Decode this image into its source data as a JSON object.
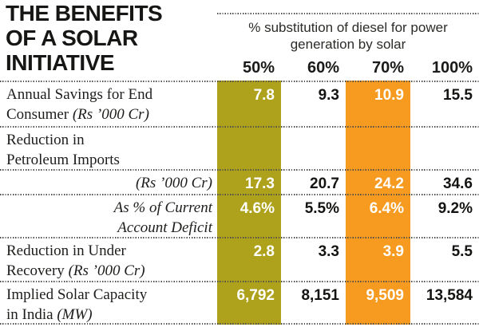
{
  "title": {
    "line1": "THE BENEFITS",
    "line2": "OF A SOLAR",
    "line3": "INITIATIVE"
  },
  "header": {
    "subtitle": "% substitution of diesel for power generation by solar",
    "col1": "50%",
    "col2": "60%",
    "col3": "70%",
    "col4": "100%"
  },
  "colors": {
    "olive_band": "#aea11b",
    "orange_band": "#f79b20"
  },
  "rows": [
    {
      "label_l1": "Annual Savings for End",
      "label_l2": "Consumer",
      "label_note": "(Rs ’000 Cr)",
      "v1": "7.8",
      "v2": "9.3",
      "v3": "10.9",
      "v4": "15.5"
    },
    {
      "label_l1": "Reduction in",
      "label_l2": "Petroleum Imports",
      "v1": "",
      "v2": "",
      "v3": "",
      "v4": ""
    },
    {
      "label_note": "(Rs ’000 Cr)",
      "v1": "17.3",
      "v2": "20.7",
      "v3": "24.2",
      "v4": "34.6"
    },
    {
      "label_l1": "As % of Current",
      "label_l2": "Account Deficit",
      "v1": "4.6%",
      "v2": "5.5%",
      "v3": "6.4%",
      "v4": "9.2%"
    },
    {
      "label_l1": "Reduction in Under",
      "label_l2": "Recovery",
      "label_note": "(Rs ’000 Cr)",
      "v1": "2.8",
      "v2": "3.3",
      "v3": "3.9",
      "v4": "5.5"
    },
    {
      "label_l1": "Implied Solar Capacity",
      "label_l2": "in India",
      "label_note": "(MW)",
      "v1": "6,792",
      "v2": "8,151",
      "v3": "9,509",
      "v4": "13,584"
    }
  ],
  "chart_data": {
    "type": "table",
    "title": "The Benefits of a Solar Initiative",
    "column_group_label": "% substitution of diesel for power generation by solar",
    "columns": [
      "50%",
      "60%",
      "70%",
      "100%"
    ],
    "highlighted_columns": [
      "50%",
      "70%"
    ],
    "rows": [
      {
        "label": "Annual Savings for End Consumer (Rs ’000 Cr)",
        "values": [
          7.8,
          9.3,
          10.9,
          15.5
        ]
      },
      {
        "label": "Reduction in Petroleum Imports (Rs ’000 Cr)",
        "values": [
          17.3,
          20.7,
          24.2,
          34.6
        ]
      },
      {
        "label": "Reduction in Petroleum Imports – As % of Current Account Deficit",
        "values": [
          "4.6%",
          "5.5%",
          "6.4%",
          "9.2%"
        ]
      },
      {
        "label": "Reduction in Under Recovery (Rs ’000 Cr)",
        "values": [
          2.8,
          3.3,
          3.9,
          5.5
        ]
      },
      {
        "label": "Implied Solar Capacity in India (MW)",
        "values": [
          6792,
          8151,
          9509,
          13584
        ]
      }
    ]
  }
}
